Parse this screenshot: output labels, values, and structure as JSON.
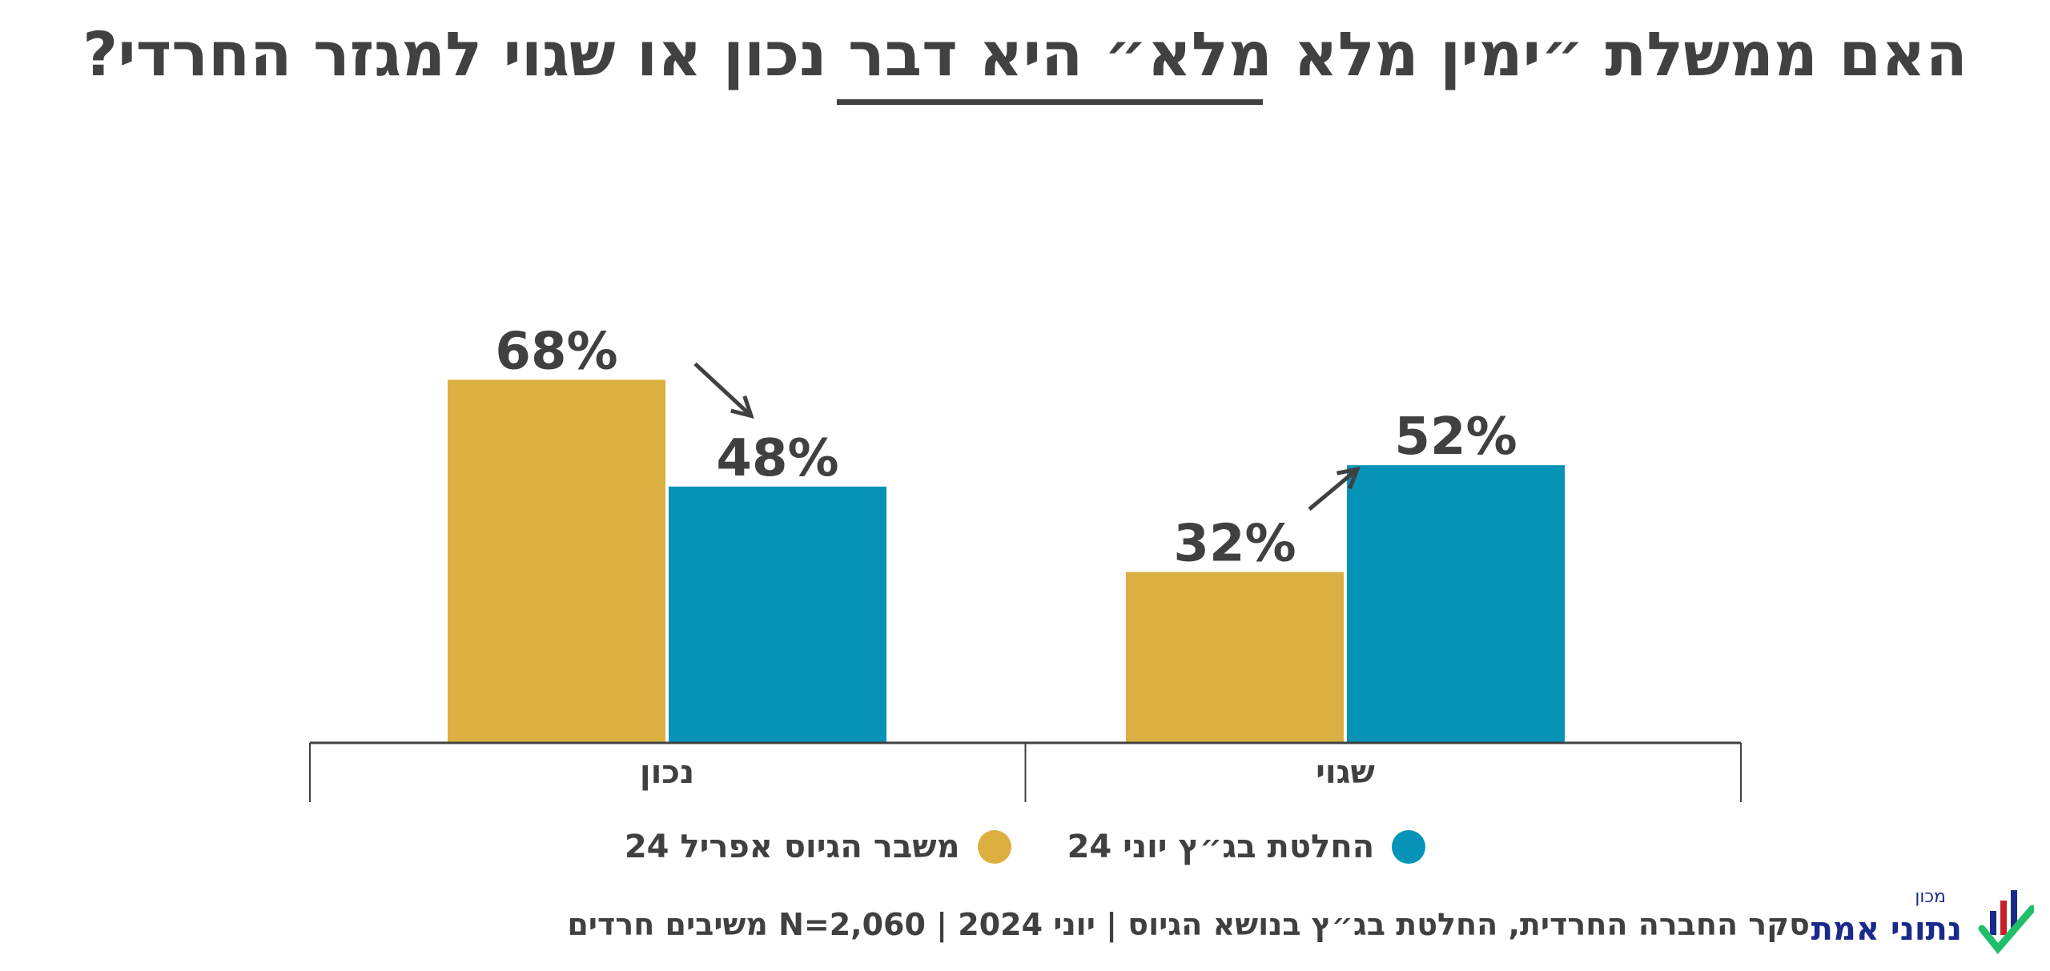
{
  "title": "האם ממשלת ״ימין מלא מלא״ היא דבר נכון או שגוי למגזר החרדי?",
  "legend": [
    {
      "label": "החלטת בג״ץ יוני 24",
      "color": "#0593b8"
    },
    {
      "label": "משבר הגיוס אפריל 24",
      "color": "#dcb040"
    }
  ],
  "footer": "סקר החברה החרדית, החלטת בג״ץ בנושא הגיוס  |  יוני 2024  |  N=2,060 משיבים חרדים",
  "logo": {
    "small": "מכון",
    "main": "נתוני אמת"
  },
  "chart_data": {
    "type": "bar",
    "categories": [
      "נכון",
      "שגוי"
    ],
    "series": [
      {
        "name": "משבר הגיוס אפריל 24",
        "values": [
          68,
          32
        ],
        "color": "#dcb040"
      },
      {
        "name": "החלטת בג״ץ יוני 24",
        "values": [
          48,
          52
        ],
        "color": "#0593b8"
      }
    ],
    "value_labels": [
      [
        "68%",
        "32%"
      ],
      [
        "48%",
        "52%"
      ]
    ],
    "trend": [
      "down",
      "up"
    ],
    "ylim": [
      0,
      100
    ],
    "grid": false,
    "legend_position": "bottom"
  }
}
